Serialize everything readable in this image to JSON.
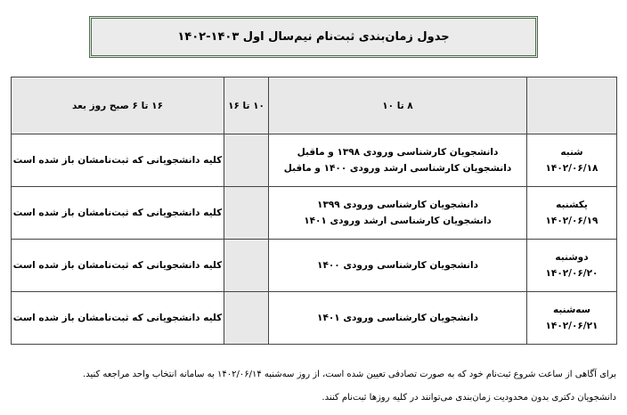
{
  "header": {
    "title": "جدول زمان‌بندی ثبت‌نام نیم‌سال اول ۱۴۰۳-۱۴۰۲"
  },
  "table": {
    "columns": [
      "۸ تا ۱۰",
      "۱۰ تا ۱۶",
      "۱۶ تا ۶ صبح روز بعد"
    ],
    "rows": [
      {
        "day": "شنبه",
        "date": "۱۴۰۲/۰۶/۱۸",
        "morning": [
          "دانشجویان کارشناسی ورودی ۱۳۹۸ و ماقبل",
          "دانشجویان کارشناسی ارشد ورودی ۱۴۰۰ و ماقبل"
        ],
        "night": "کلیه دانشجویانی که ثبت‌نامشان باز شده است"
      },
      {
        "day": "یکشنبه",
        "date": "۱۴۰۲/۰۶/۱۹",
        "morning": [
          "دانشجویان کارشناسی ورودی ۱۳۹۹",
          "دانشجویان کارشناسی ارشد ورودی ۱۴۰۱"
        ],
        "night": "کلیه دانشجویانی که ثبت‌نامشان باز شده است"
      },
      {
        "day": "دوشنبه",
        "date": "۱۴۰۲/۰۶/۲۰",
        "morning": [
          "دانشجویان کارشناسی ورودی ۱۴۰۰"
        ],
        "night": "کلیه دانشجویانی که ثبت‌نامشان باز شده است"
      },
      {
        "day": "سه‌شنبه",
        "date": "۱۴۰۲/۰۶/۲۱",
        "morning": [
          "دانشجویان کارشناسی ورودی ۱۴۰۱"
        ],
        "night": "کلیه دانشجویانی که ثبت‌نامشان باز شده است"
      }
    ]
  },
  "notes": [
    "برای آگاهی از ساعت شروع ثبت‌نام خود که به صورت تصادفی تعیین شده است، از روز سه‌شنبه ۱۴۰۲/۰۶/۱۴ به سامانه انتخاب واحد مراجعه کنید.",
    "دانشجویان دکتری بدون محدودیت زمان‌بندی می‌توانند در کلیه روزها ثبت‌نام کنند."
  ]
}
